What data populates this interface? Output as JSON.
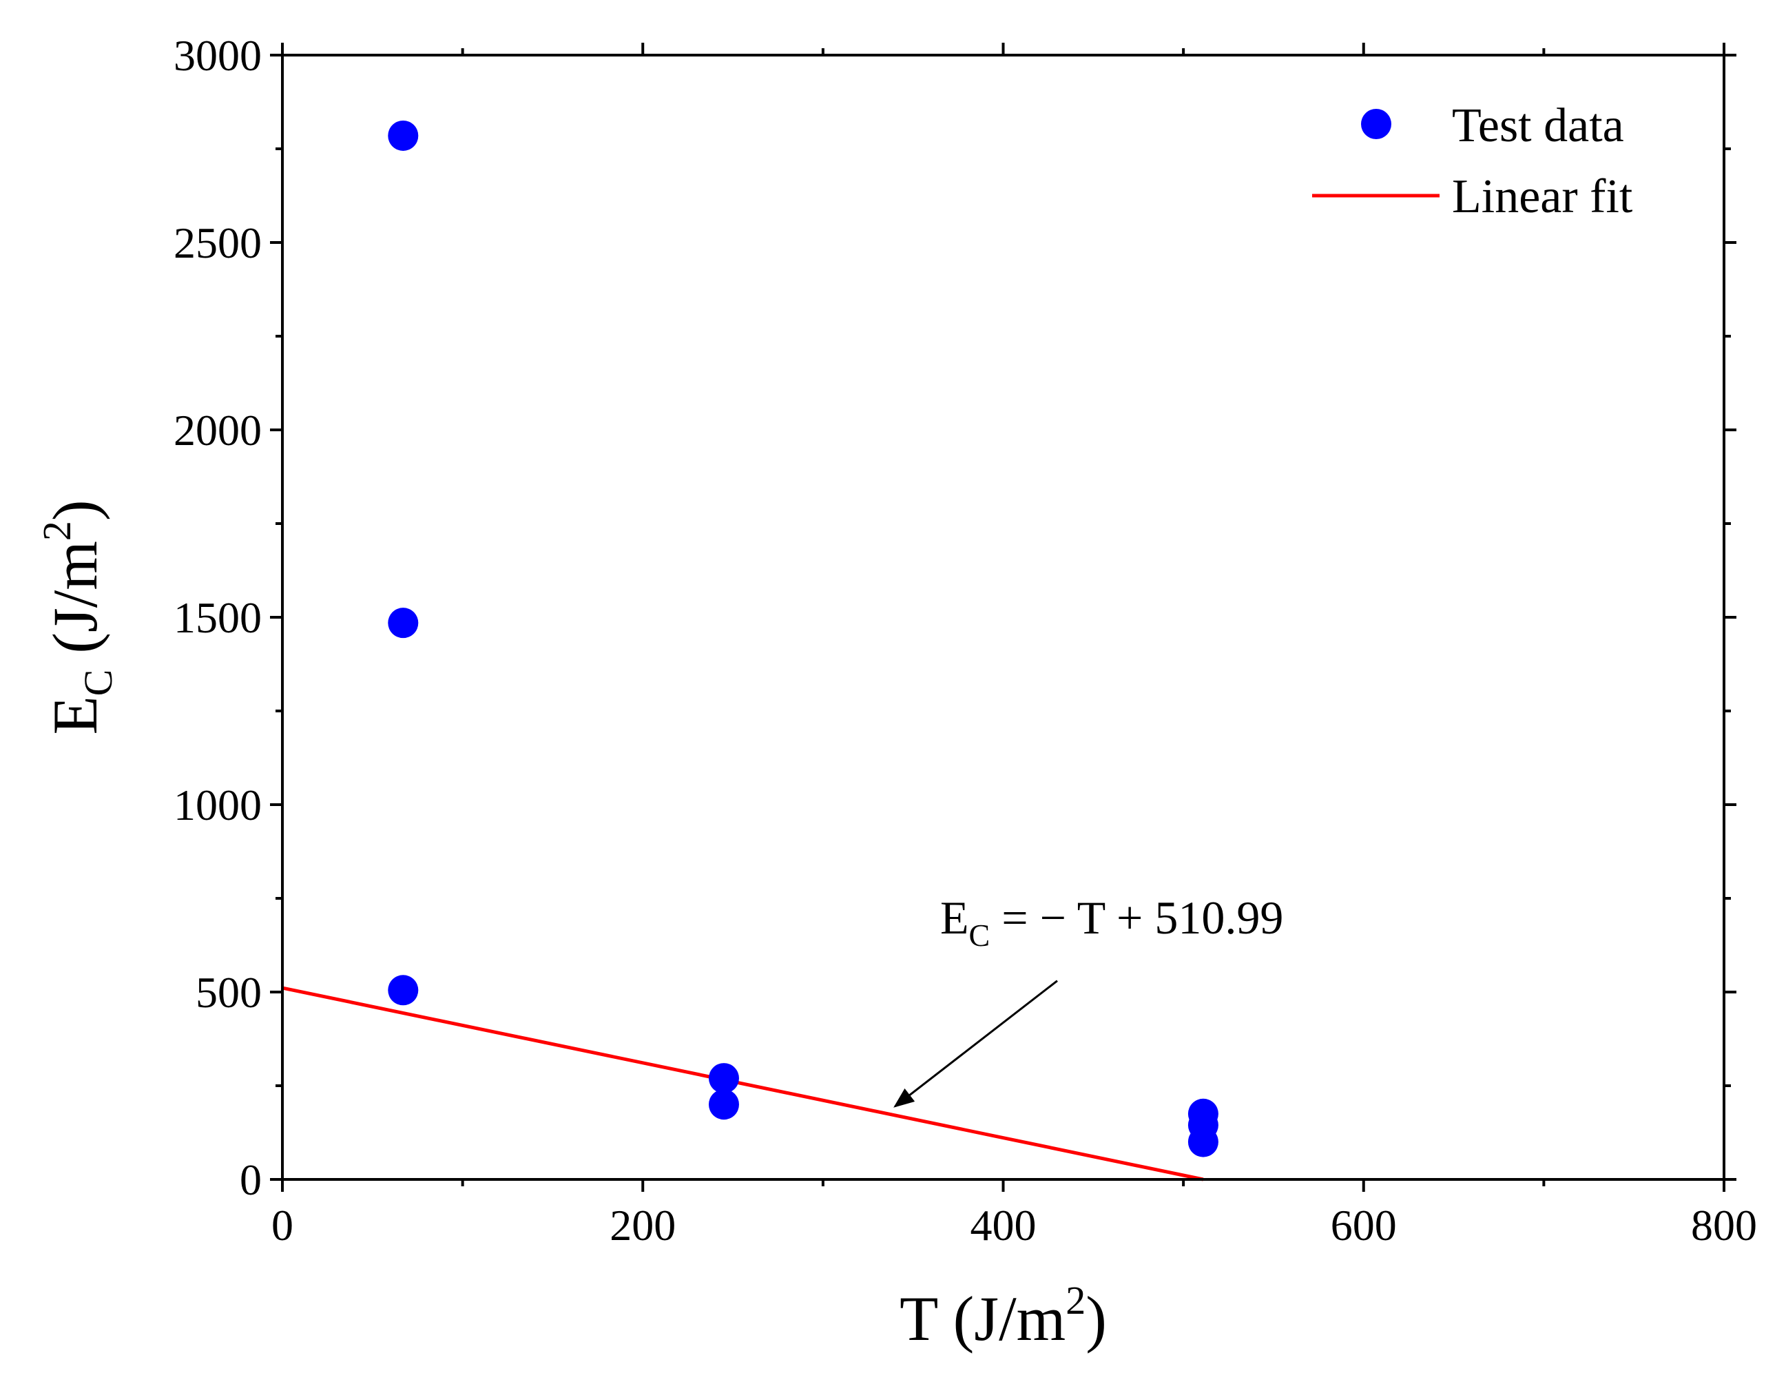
{
  "chart_data": {
    "type": "scatter",
    "title": "",
    "xlabel": {
      "main": "T (J/m",
      "sup": "2",
      "close": ")"
    },
    "ylabel": {
      "main": "E",
      "sub": "C",
      "mid": " (J/m",
      "sup": "2",
      "close": ")"
    },
    "xlim": [
      0,
      800
    ],
    "ylim": [
      0,
      3000
    ],
    "x_ticks": [
      0,
      200,
      400,
      600,
      800
    ],
    "y_ticks": [
      0,
      500,
      1000,
      1500,
      2000,
      2500,
      3000
    ],
    "x_minor_step": 100,
    "y_minor_step": 250,
    "grid": false,
    "legend_position": "top-right",
    "series": [
      {
        "name": "Test data",
        "kind": "scatter",
        "color": "#0000ff",
        "points": [
          {
            "x": 67,
            "y": 2785
          },
          {
            "x": 67,
            "y": 1485
          },
          {
            "x": 67,
            "y": 505
          },
          {
            "x": 245,
            "y": 270
          },
          {
            "x": 245,
            "y": 200
          },
          {
            "x": 511,
            "y": 175
          },
          {
            "x": 511,
            "y": 145
          },
          {
            "x": 511,
            "y": 100
          }
        ]
      },
      {
        "name": "Linear fit",
        "kind": "line",
        "color": "#ff0000",
        "slope": -1,
        "intercept": 510.99,
        "x_range": [
          0,
          510.99
        ]
      }
    ],
    "annotation": {
      "lhs": "E",
      "lhs_sub": "C",
      "rhs": " = − T + 510.99",
      "arrow_from": [
        430,
        530
      ],
      "arrow_to": [
        340,
        195
      ]
    }
  }
}
